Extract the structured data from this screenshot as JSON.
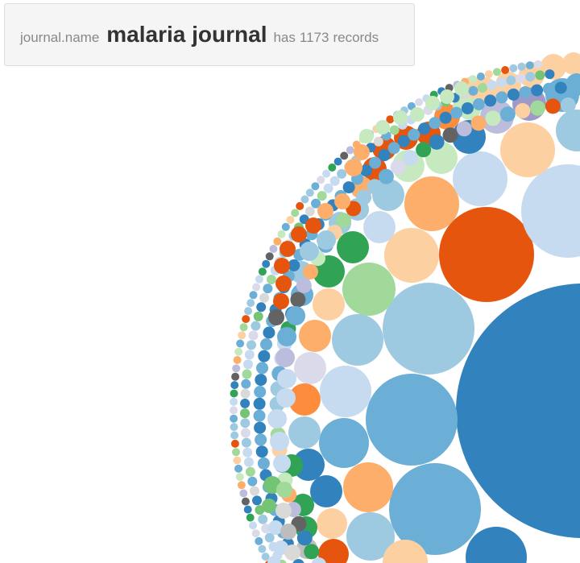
{
  "info": {
    "field_label": "journal.name",
    "field_value": "malaria journal",
    "count_prefix": "has",
    "record_count": "1173",
    "count_suffix": "records"
  },
  "palette": {
    "blue": "#3182bd",
    "blue_mid": "#6baed6",
    "blue_light": "#9ecae1",
    "blue_pale": "#c6dbef",
    "orange": "#e6550d",
    "orange_mid": "#fd8d3c",
    "orange_light": "#fdae6b",
    "orange_pale": "#fdd0a2",
    "green": "#31a354",
    "green_mid": "#74c476",
    "green_light": "#a1d99b",
    "green_pale": "#c7e9c0",
    "purple": "#756bb1",
    "purple_mid": "#9e9ac8",
    "purple_light": "#bcbddc",
    "purple_pale": "#dadaeb",
    "grey": "#636363",
    "grey_mid": "#969696",
    "grey_light": "#bdbdbd",
    "grey_pale": "#d9d9d9"
  }
}
